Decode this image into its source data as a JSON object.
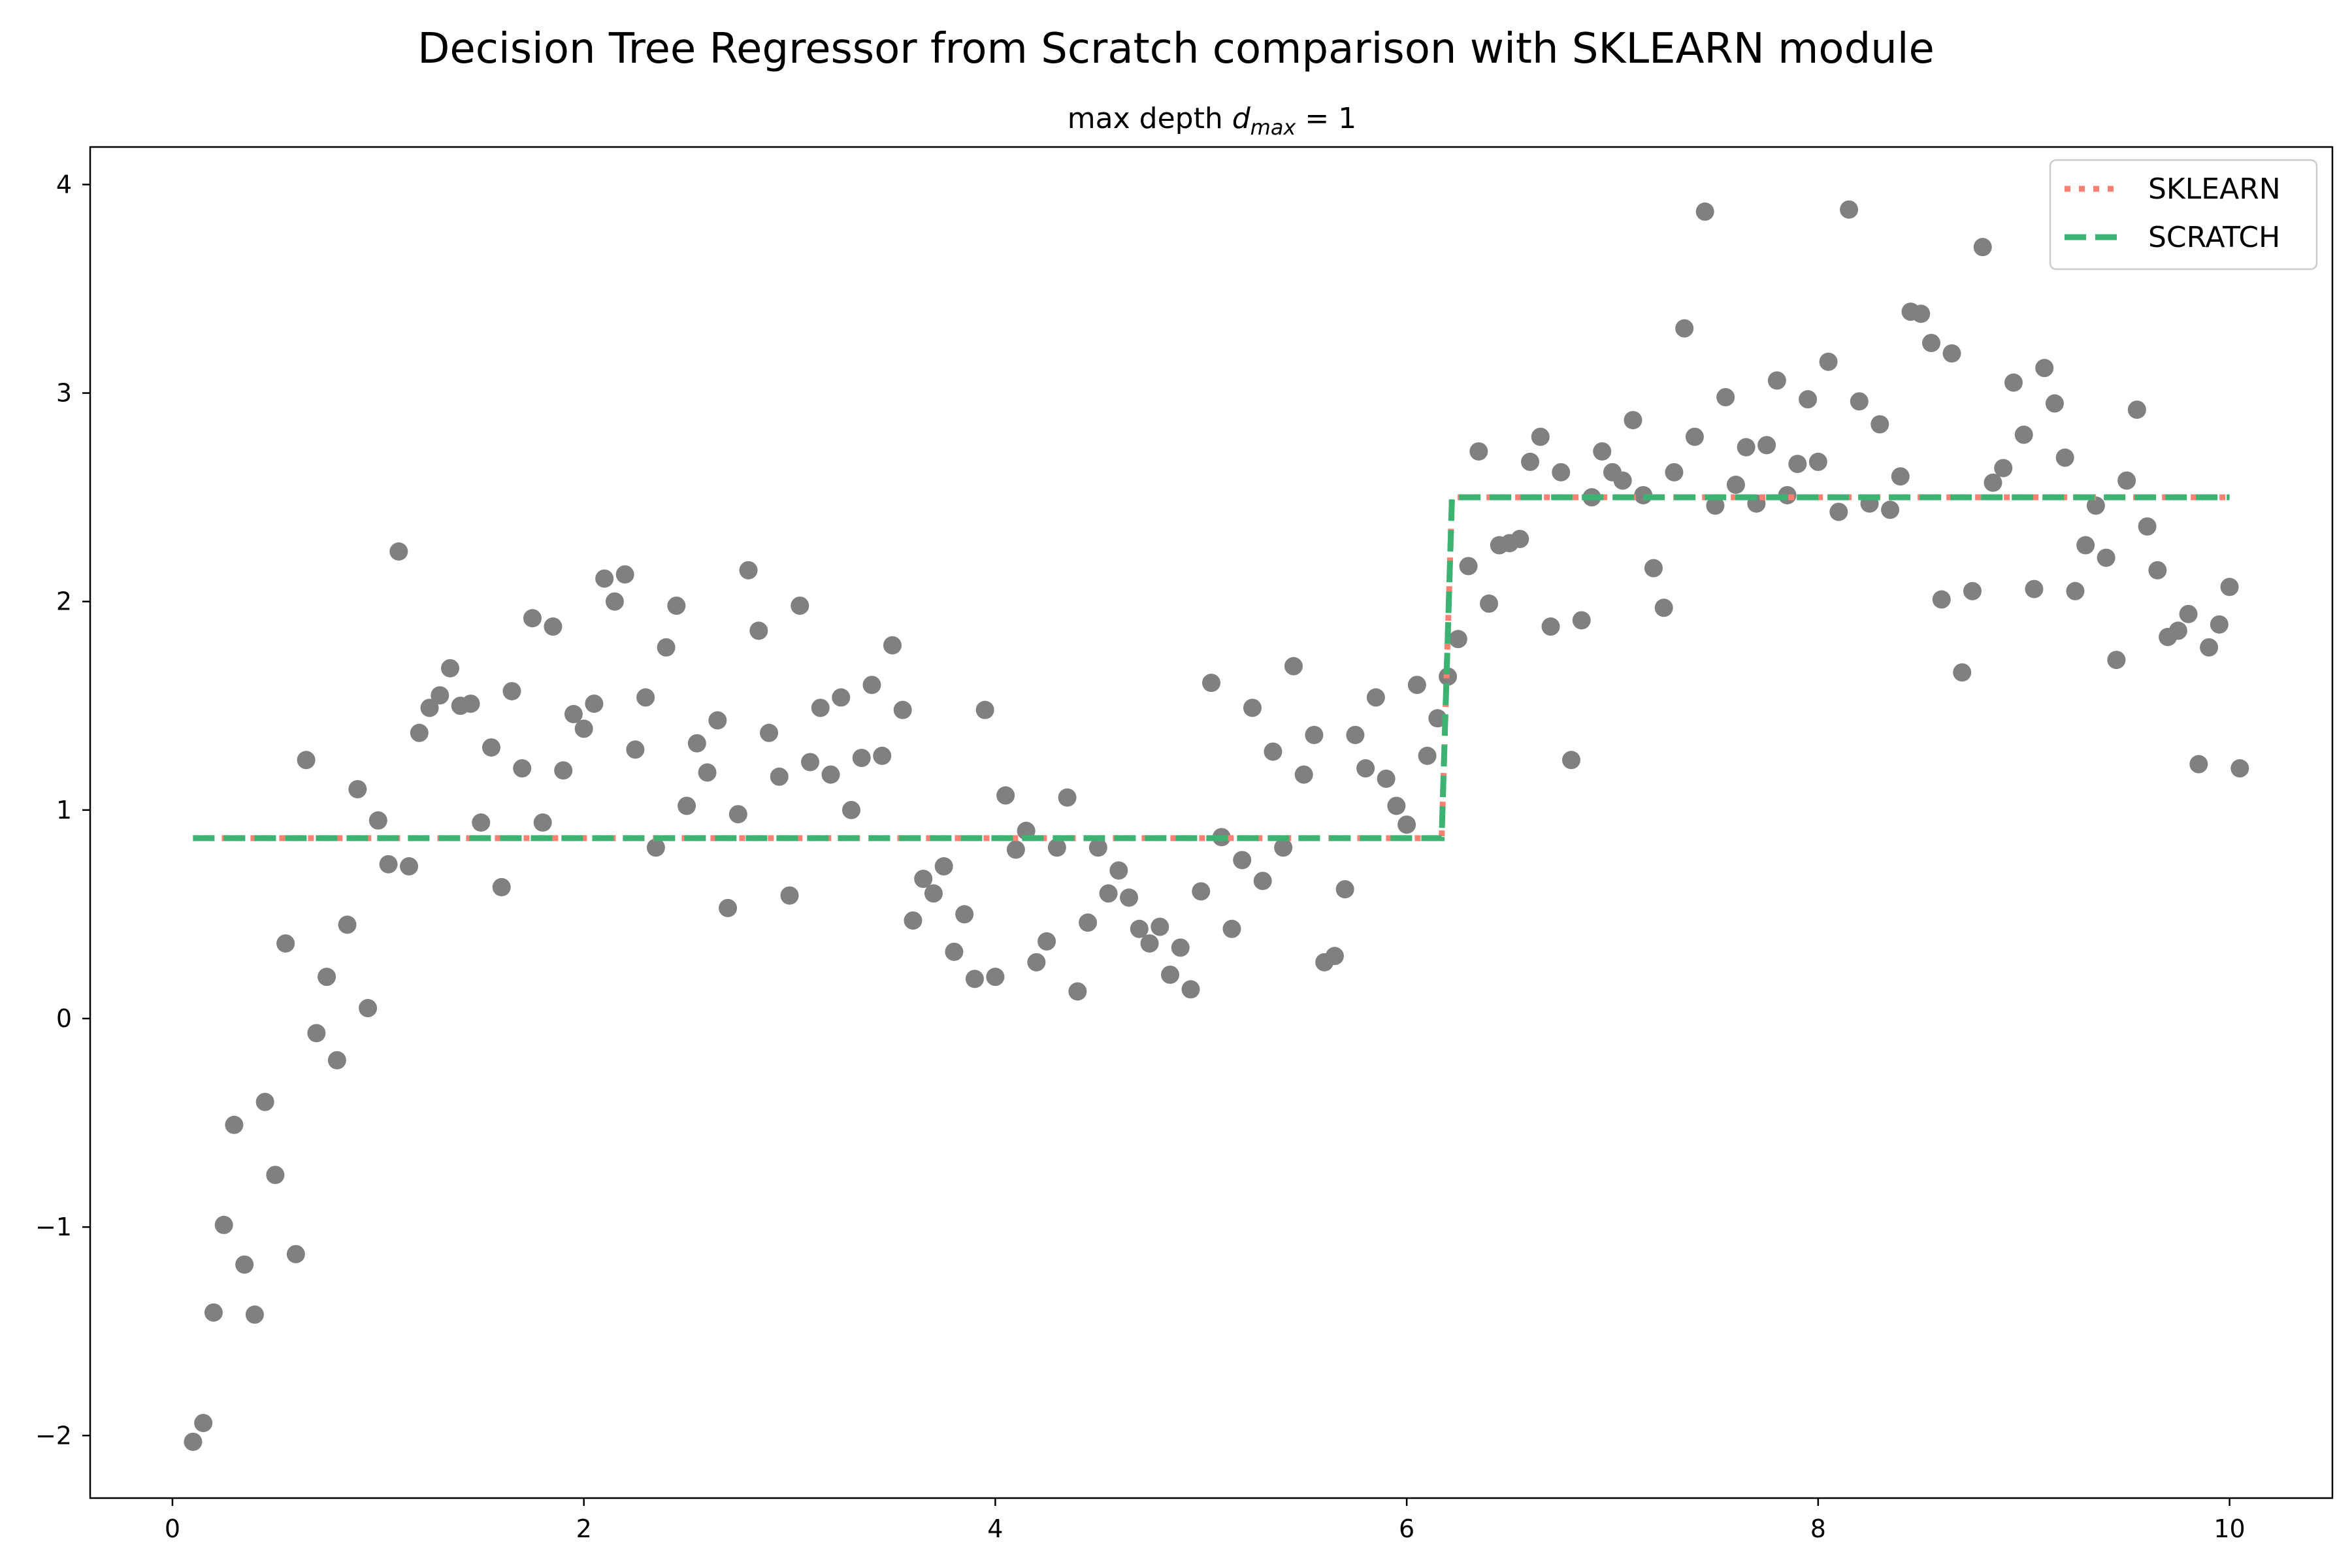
{
  "chart_data": {
    "type": "scatter",
    "title": "Decision Tree Regressor from Scratch comparison with SKLEARN module",
    "subtitle_prefix": "max depth ",
    "subtitle_var": "d",
    "subtitle_sub": "max",
    "subtitle_suffix": " = 1",
    "xlabel": "",
    "ylabel": "",
    "xlim": [
      -0.4,
      10.5
    ],
    "ylim": [
      -2.3,
      4.18
    ],
    "xticks": [
      0,
      2,
      4,
      6,
      8,
      10
    ],
    "yticks": [
      -2,
      -1,
      0,
      1,
      2,
      3,
      4
    ],
    "grid": false,
    "legend_position": "top-right",
    "colors": {
      "points": "#808080",
      "sklearn": "#fa8072",
      "scratch": "#3cb371"
    },
    "series": [
      {
        "name": "data",
        "kind": "scatter",
        "points": [
          [
            0.1,
            -2.03
          ],
          [
            0.15,
            -1.94
          ],
          [
            0.2,
            -1.41
          ],
          [
            0.25,
            -0.99
          ],
          [
            0.3,
            -0.51
          ],
          [
            0.35,
            -1.18
          ],
          [
            0.4,
            -1.42
          ],
          [
            0.45,
            -0.4
          ],
          [
            0.5,
            -0.75
          ],
          [
            0.55,
            0.36
          ],
          [
            0.6,
            -1.13
          ],
          [
            0.65,
            1.24
          ],
          [
            0.7,
            -0.07
          ],
          [
            0.75,
            0.2
          ],
          [
            0.8,
            -0.2
          ],
          [
            0.85,
            0.45
          ],
          [
            0.9,
            1.1
          ],
          [
            0.95,
            0.05
          ],
          [
            1.0,
            0.95
          ],
          [
            1.05,
            0.74
          ],
          [
            1.1,
            2.24
          ],
          [
            1.15,
            0.73
          ],
          [
            1.2,
            1.37
          ],
          [
            1.25,
            1.49
          ],
          [
            1.3,
            1.55
          ],
          [
            1.35,
            1.68
          ],
          [
            1.4,
            1.5
          ],
          [
            1.45,
            1.51
          ],
          [
            1.5,
            0.94
          ],
          [
            1.55,
            1.3
          ],
          [
            1.6,
            0.63
          ],
          [
            1.65,
            1.57
          ],
          [
            1.7,
            1.2
          ],
          [
            1.75,
            1.92
          ],
          [
            1.8,
            0.94
          ],
          [
            1.85,
            1.88
          ],
          [
            1.9,
            1.19
          ],
          [
            1.95,
            1.46
          ],
          [
            2.0,
            1.39
          ],
          [
            2.05,
            1.51
          ],
          [
            2.1,
            2.11
          ],
          [
            2.15,
            2.0
          ],
          [
            2.2,
            2.13
          ],
          [
            2.25,
            1.29
          ],
          [
            2.3,
            1.54
          ],
          [
            2.35,
            0.82
          ],
          [
            2.4,
            1.78
          ],
          [
            2.45,
            1.98
          ],
          [
            2.5,
            1.02
          ],
          [
            2.55,
            1.32
          ],
          [
            2.6,
            1.18
          ],
          [
            2.65,
            1.43
          ],
          [
            2.7,
            0.53
          ],
          [
            2.75,
            0.98
          ],
          [
            2.8,
            2.15
          ],
          [
            2.85,
            1.86
          ],
          [
            2.9,
            1.37
          ],
          [
            2.95,
            1.16
          ],
          [
            3.0,
            0.59
          ],
          [
            3.05,
            1.98
          ],
          [
            3.1,
            1.23
          ],
          [
            3.15,
            1.49
          ],
          [
            3.2,
            1.17
          ],
          [
            3.25,
            1.54
          ],
          [
            3.3,
            1.0
          ],
          [
            3.35,
            1.25
          ],
          [
            3.4,
            1.6
          ],
          [
            3.45,
            1.26
          ],
          [
            3.5,
            1.79
          ],
          [
            3.55,
            1.48
          ],
          [
            3.6,
            0.47
          ],
          [
            3.65,
            0.67
          ],
          [
            3.7,
            0.6
          ],
          [
            3.75,
            0.73
          ],
          [
            3.8,
            0.32
          ],
          [
            3.85,
            0.5
          ],
          [
            3.9,
            0.19
          ],
          [
            3.95,
            1.48
          ],
          [
            4.0,
            0.2
          ],
          [
            4.05,
            1.07
          ],
          [
            4.1,
            0.81
          ],
          [
            4.15,
            0.9
          ],
          [
            4.2,
            0.27
          ],
          [
            4.25,
            0.37
          ],
          [
            4.3,
            0.82
          ],
          [
            4.35,
            1.06
          ],
          [
            4.4,
            0.13
          ],
          [
            4.45,
            0.46
          ],
          [
            4.5,
            0.82
          ],
          [
            4.55,
            0.6
          ],
          [
            4.6,
            0.71
          ],
          [
            4.65,
            0.58
          ],
          [
            4.7,
            0.43
          ],
          [
            4.75,
            0.36
          ],
          [
            4.8,
            0.44
          ],
          [
            4.85,
            0.21
          ],
          [
            4.9,
            0.34
          ],
          [
            4.95,
            0.14
          ],
          [
            5.0,
            0.61
          ],
          [
            5.05,
            1.61
          ],
          [
            5.1,
            0.87
          ],
          [
            5.15,
            0.43
          ],
          [
            5.2,
            0.76
          ],
          [
            5.25,
            1.49
          ],
          [
            5.3,
            0.66
          ],
          [
            5.35,
            1.28
          ],
          [
            5.4,
            0.82
          ],
          [
            5.45,
            1.69
          ],
          [
            5.5,
            1.17
          ],
          [
            5.55,
            1.36
          ],
          [
            5.6,
            0.27
          ],
          [
            5.65,
            0.3
          ],
          [
            5.7,
            0.62
          ],
          [
            5.75,
            1.36
          ],
          [
            5.8,
            1.2
          ],
          [
            5.85,
            1.54
          ],
          [
            5.9,
            1.15
          ],
          [
            5.95,
            1.02
          ],
          [
            6.0,
            0.93
          ],
          [
            6.05,
            1.6
          ],
          [
            6.1,
            1.26
          ],
          [
            6.15,
            1.44
          ],
          [
            6.2,
            1.64
          ],
          [
            6.25,
            1.82
          ],
          [
            6.3,
            2.17
          ],
          [
            6.35,
            2.72
          ],
          [
            6.4,
            1.99
          ],
          [
            6.45,
            2.27
          ],
          [
            6.5,
            2.28
          ],
          [
            6.55,
            2.3
          ],
          [
            6.6,
            2.67
          ],
          [
            6.65,
            2.79
          ],
          [
            6.7,
            1.88
          ],
          [
            6.75,
            2.62
          ],
          [
            6.8,
            1.24
          ],
          [
            6.85,
            1.91
          ],
          [
            6.9,
            2.5
          ],
          [
            6.95,
            2.72
          ],
          [
            7.0,
            2.62
          ],
          [
            7.05,
            2.58
          ],
          [
            7.1,
            2.87
          ],
          [
            7.15,
            2.51
          ],
          [
            7.2,
            2.16
          ],
          [
            7.25,
            1.97
          ],
          [
            7.3,
            2.62
          ],
          [
            7.35,
            3.31
          ],
          [
            7.4,
            2.79
          ],
          [
            7.45,
            3.87
          ],
          [
            7.5,
            2.46
          ],
          [
            7.55,
            2.98
          ],
          [
            7.6,
            2.56
          ],
          [
            7.65,
            2.74
          ],
          [
            7.7,
            2.47
          ],
          [
            7.75,
            2.75
          ],
          [
            7.8,
            3.06
          ],
          [
            7.85,
            2.51
          ],
          [
            7.9,
            2.66
          ],
          [
            7.95,
            2.97
          ],
          [
            8.0,
            2.67
          ],
          [
            8.05,
            3.15
          ],
          [
            8.1,
            2.43
          ],
          [
            8.15,
            3.88
          ],
          [
            8.2,
            2.96
          ],
          [
            8.25,
            2.47
          ],
          [
            8.3,
            2.85
          ],
          [
            8.35,
            2.44
          ],
          [
            8.4,
            2.6
          ],
          [
            8.45,
            3.39
          ],
          [
            8.5,
            3.38
          ],
          [
            8.55,
            3.24
          ],
          [
            8.6,
            2.01
          ],
          [
            8.65,
            3.19
          ],
          [
            8.7,
            1.66
          ],
          [
            8.75,
            2.05
          ],
          [
            8.8,
            3.7
          ],
          [
            8.85,
            2.57
          ],
          [
            8.9,
            2.64
          ],
          [
            8.95,
            3.05
          ],
          [
            9.0,
            2.8
          ],
          [
            9.05,
            2.06
          ],
          [
            9.1,
            3.12
          ],
          [
            9.15,
            2.95
          ],
          [
            9.2,
            2.69
          ],
          [
            9.25,
            2.05
          ],
          [
            9.3,
            2.27
          ],
          [
            9.35,
            2.46
          ],
          [
            9.4,
            2.21
          ],
          [
            9.45,
            1.72
          ],
          [
            9.5,
            2.58
          ],
          [
            9.55,
            2.92
          ],
          [
            9.6,
            2.36
          ],
          [
            9.65,
            2.15
          ],
          [
            9.7,
            1.83
          ],
          [
            9.75,
            1.86
          ],
          [
            9.8,
            1.94
          ],
          [
            9.85,
            1.22
          ],
          [
            9.9,
            1.78
          ],
          [
            9.95,
            1.89
          ],
          [
            10.0,
            2.07
          ],
          [
            10.05,
            1.2
          ]
        ]
      },
      {
        "name": "SKLEARN",
        "kind": "line",
        "style": "dotted",
        "x": [
          0.1,
          6.17,
          6.22,
          10.0
        ],
        "y": [
          0.865,
          0.865,
          2.5,
          2.5
        ]
      },
      {
        "name": "SCRATCH",
        "kind": "line",
        "style": "dashed",
        "x": [
          0.1,
          6.17,
          6.22,
          10.0
        ],
        "y": [
          0.865,
          0.865,
          2.5,
          2.5
        ]
      }
    ]
  }
}
